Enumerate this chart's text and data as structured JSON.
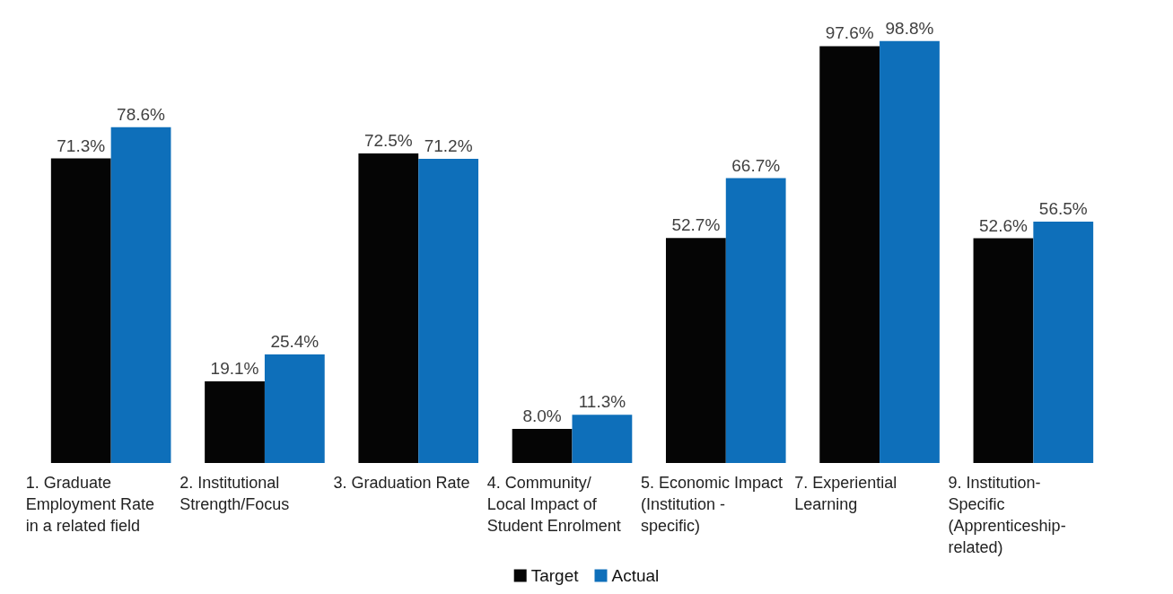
{
  "chart_data": {
    "type": "bar",
    "categories": [
      "1. Graduate Employment Rate in a related field",
      "2. Institutional Strength/Focus",
      "3. Graduation Rate",
      "4. Community/ Local Impact of Student Enrolment",
      "5. Economic Impact (Institution -specific)",
      "7. Experiential Learning",
      "9. Institution-Specific (Apprenticeship-related)"
    ],
    "series": [
      {
        "name": "Target",
        "color": "#050505",
        "values": [
          71.3,
          19.1,
          72.5,
          8.0,
          52.7,
          97.6,
          52.6
        ],
        "value_labels": [
          "71.3%",
          "19.1%",
          "72.5%",
          "8.0%",
          "52.7%",
          "97.6%",
          "52.6%"
        ]
      },
      {
        "name": "Actual",
        "color": "#0e6fba",
        "values": [
          78.6,
          25.4,
          71.2,
          11.3,
          66.7,
          98.8,
          56.5
        ],
        "value_labels": [
          "78.6%",
          "25.4%",
          "71.2%",
          "11.3%",
          "66.7%",
          "98.8%",
          "56.5%"
        ]
      }
    ],
    "legend": "bottom"
  }
}
